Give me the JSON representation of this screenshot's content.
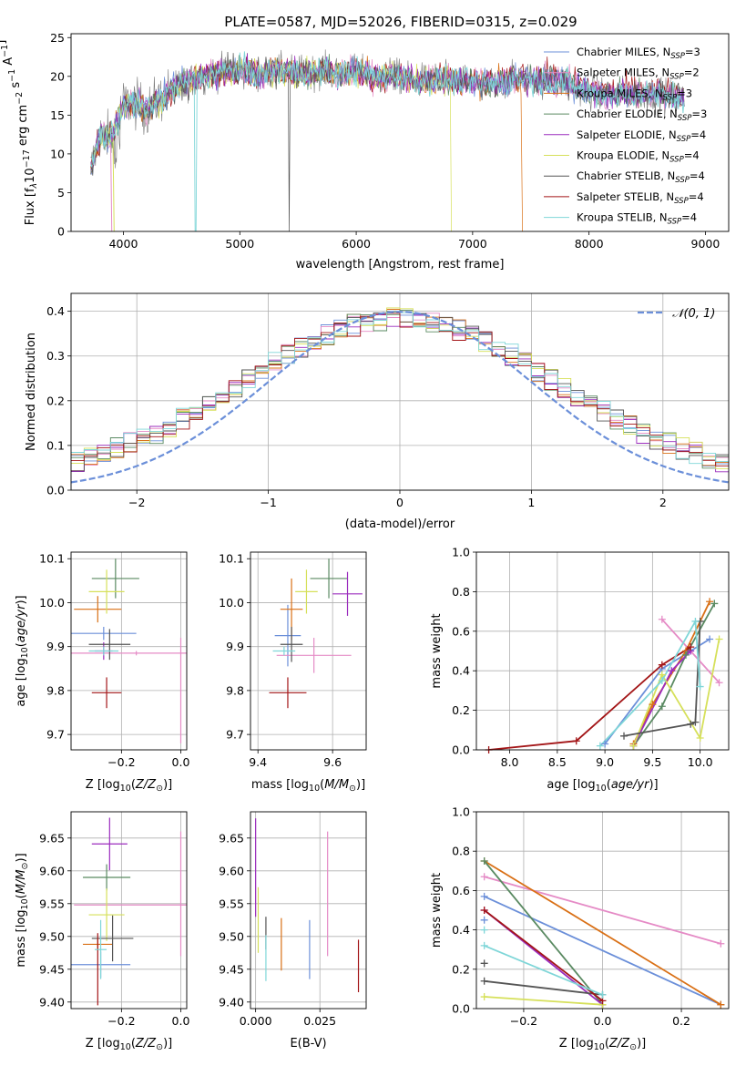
{
  "title": "PLATE=0587, MJD=52026, FIBERID=0315, z=0.029",
  "colors": {
    "chabrier_miles": "#6b8fd9",
    "salpeter_miles": "#e58bc6",
    "kroupa_miles": "#d97016",
    "chabrier_elodie": "#5a8a62",
    "salpeter_elodie": "#9b2cbe",
    "kroupa_elodie": "#d6e05a",
    "chabrier_stelib": "#555555",
    "salpeter_stelib": "#a31517",
    "kroupa_stelib": "#7fd6d8"
  },
  "chart_data": [
    {
      "id": "spectrum",
      "type": "line",
      "xlabel": "wavelength [Angstrom, rest frame]",
      "ylabel_parts": [
        "Flux [f",
        "λ",
        "10",
        "−17",
        " erg cm",
        "−2",
        " s",
        "−1",
        " A",
        "−1",
        "]"
      ],
      "xlim": [
        3550,
        9200
      ],
      "ylim": [
        0,
        25.5
      ],
      "xticks": [
        4000,
        5000,
        6000,
        7000,
        8000,
        9000
      ],
      "yticks": [
        0,
        5,
        10,
        15,
        20,
        25
      ],
      "grid": false,
      "legend_position": "top-right",
      "legend": [
        {
          "label": "Chabrier MILES, N",
          "sub": "SSP",
          "tail": "=3",
          "color_key": "chabrier_miles"
        },
        {
          "label": "Salpeter MILES, N",
          "sub": "SSP",
          "tail": "=2",
          "color_key": "salpeter_miles"
        },
        {
          "label": "Kroupa MILES, N",
          "sub": "SSP",
          "tail": "=3",
          "color_key": "kroupa_miles"
        },
        {
          "label": "Chabrier ELODIE, N",
          "sub": "SSP",
          "tail": "=3",
          "color_key": "chabrier_elodie"
        },
        {
          "label": "Salpeter ELODIE, N",
          "sub": "SSP",
          "tail": "=4",
          "color_key": "salpeter_elodie"
        },
        {
          "label": "Kroupa ELODIE, N",
          "sub": "SSP",
          "tail": "=4",
          "color_key": "kroupa_elodie"
        },
        {
          "label": "Chabrier STELIB, N",
          "sub": "SSP",
          "tail": "=4",
          "color_key": "chabrier_stelib"
        },
        {
          "label": "Salpeter STELIB, N",
          "sub": "SSP",
          "tail": "=4",
          "color_key": "salpeter_stelib"
        },
        {
          "label": "Kroupa STELIB, N",
          "sub": "SSP",
          "tail": "=4",
          "color_key": "kroupa_stelib"
        }
      ],
      "continuum": [
        [
          3720,
          8
        ],
        [
          3800,
          12.5
        ],
        [
          3900,
          12
        ],
        [
          4000,
          16.5
        ],
        [
          4100,
          16.5
        ],
        [
          4200,
          15.5
        ],
        [
          4300,
          17
        ],
        [
          4400,
          18
        ],
        [
          4500,
          19
        ],
        [
          4600,
          19.5
        ],
        [
          4700,
          20
        ],
        [
          4800,
          20.5
        ],
        [
          4900,
          20.7
        ],
        [
          5000,
          21
        ],
        [
          5100,
          20.5
        ],
        [
          5200,
          20.2
        ],
        [
          5300,
          20.7
        ],
        [
          5400,
          20.7
        ],
        [
          5500,
          20.5
        ],
        [
          5600,
          20.5
        ],
        [
          5700,
          20.8
        ],
        [
          5800,
          20.3
        ],
        [
          5900,
          20.6
        ],
        [
          6000,
          20.6
        ],
        [
          6100,
          20.3
        ],
        [
          6200,
          19.8
        ],
        [
          6300,
          20.3
        ],
        [
          6400,
          19.8
        ],
        [
          6500,
          19.5
        ],
        [
          6600,
          19.5
        ],
        [
          6700,
          19.6
        ],
        [
          6800,
          19.5
        ],
        [
          7000,
          19.2
        ],
        [
          7200,
          19.0
        ],
        [
          7400,
          19.7
        ],
        [
          7600,
          19.5
        ],
        [
          7800,
          19.1
        ],
        [
          8000,
          18.0
        ],
        [
          8200,
          17.6
        ],
        [
          8500,
          17.8
        ],
        [
          8800,
          17.2
        ]
      ],
      "drops": [
        {
          "key": "salpeter_miles",
          "end": 3900
        },
        {
          "key": "kroupa_elodie",
          "end": 3920
        },
        {
          "key": "kroupa_stelib",
          "at": 4620
        },
        {
          "key": "chabrier_stelib",
          "at": 5425
        },
        {
          "key": "kroupa_elodie",
          "end": 6810
        },
        {
          "key": "kroupa_miles",
          "end": 7420
        }
      ]
    },
    {
      "id": "residuals",
      "type": "histogram",
      "xlabel": "(data-model)/error",
      "ylabel": "Normed distribution",
      "xlim": [
        -2.5,
        2.5
      ],
      "ylim": [
        0,
        0.44
      ],
      "xticks": [
        -2,
        -1,
        0,
        1,
        2
      ],
      "yticks": [
        0.0,
        0.1,
        0.2,
        0.3,
        0.4
      ],
      "grid": true,
      "legend_position": "top-right",
      "legend_label": "𝒩(0, 1)",
      "bin_width": 0.1,
      "normal_curve_color": "#6b8fd9"
    },
    {
      "id": "age_vs_Z",
      "type": "scatter",
      "xlabel": "Z [log10(Z/Z⊙)]",
      "ylabel": "age  [log10(age/yr)]",
      "xlim": [
        -0.37,
        0.02
      ],
      "ylim": [
        9.665,
        10.115
      ],
      "xticks": [
        -0.2,
        0.0
      ],
      "yticks": [
        9.7,
        9.8,
        9.9,
        10.0,
        10.1
      ],
      "grid": true,
      "points": [
        {
          "key": "chabrier_miles",
          "x": -0.26,
          "xerr": 0.11,
          "y": 9.93,
          "yerr": 0.015
        },
        {
          "key": "salpeter_miles",
          "x": -0.15,
          "xerr": 0.22,
          "y": 9.885,
          "yerr": 0.005
        },
        {
          "key": "kroupa_miles",
          "x": -0.28,
          "xerr": 0.08,
          "y": 9.985,
          "yerr": 0.03
        },
        {
          "key": "chabrier_elodie",
          "x": -0.22,
          "xerr": 0.08,
          "y": 10.055,
          "yerr": 0.045
        },
        {
          "key": "salpeter_elodie",
          "x": -0.26,
          "xerr": 0.03,
          "y": 9.89,
          "yerr": 0.02
        },
        {
          "key": "kroupa_elodie",
          "x": -0.25,
          "xerr": 0.06,
          "y": 10.025,
          "yerr": 0.05
        },
        {
          "key": "chabrier_stelib",
          "x": -0.24,
          "xerr": 0.07,
          "y": 9.905,
          "yerr": 0.035
        },
        {
          "key": "salpeter_stelib",
          "x": -0.25,
          "xerr": 0.05,
          "y": 9.795,
          "yerr": 0.035
        },
        {
          "key": "kroupa_stelib",
          "x": -0.26,
          "xerr": 0.05,
          "y": 9.89,
          "yerr": 0.01
        },
        {
          "key": "salpeter_miles",
          "x": 0.0,
          "xerr": 0.0,
          "y": 9.8,
          "yerr": 0.12
        }
      ]
    },
    {
      "id": "age_vs_mass",
      "type": "scatter",
      "xlabel": "mass [log10(M/M⊙)]",
      "ylabel": "",
      "xlim": [
        9.38,
        9.69
      ],
      "ylim": [
        9.665,
        10.115
      ],
      "xticks": [
        9.4,
        9.6
      ],
      "yticks": [
        9.7,
        9.8,
        9.9,
        10.0,
        10.1
      ],
      "grid": true,
      "points": [
        {
          "key": "chabrier_miles",
          "x": 9.48,
          "xerr": 0.035,
          "y": 9.925,
          "yerr": 0.07
        },
        {
          "key": "salpeter_miles",
          "x": 9.55,
          "xerr": 0.1,
          "y": 9.88,
          "yerr": 0.04
        },
        {
          "key": "kroupa_miles",
          "x": 9.49,
          "xerr": 0.03,
          "y": 9.985,
          "yerr": 0.07
        },
        {
          "key": "chabrier_elodie",
          "x": 9.59,
          "xerr": 0.05,
          "y": 10.055,
          "yerr": 0.045
        },
        {
          "key": "salpeter_elodie",
          "x": 9.64,
          "xerr": 0.04,
          "y": 10.02,
          "yerr": 0.05
        },
        {
          "key": "kroupa_elodie",
          "x": 9.53,
          "xerr": 0.03,
          "y": 10.025,
          "yerr": 0.05
        },
        {
          "key": "chabrier_stelib",
          "x": 9.49,
          "xerr": 0.03,
          "y": 9.905,
          "yerr": 0.04
        },
        {
          "key": "salpeter_stelib",
          "x": 9.48,
          "xerr": 0.05,
          "y": 9.795,
          "yerr": 0.035
        },
        {
          "key": "kroupa_stelib",
          "x": 9.47,
          "xerr": 0.03,
          "y": 9.89,
          "yerr": 0.01
        }
      ]
    },
    {
      "id": "massweight_vs_age",
      "type": "line",
      "xlabel": "age  [log10(age/yr)]",
      "ylabel": "mass weight",
      "xlim": [
        7.65,
        10.3
      ],
      "ylim": [
        0,
        1.0
      ],
      "xticks": [
        8.0,
        8.5,
        9.0,
        9.5,
        10.0
      ],
      "yticks": [
        0.0,
        0.2,
        0.4,
        0.6,
        0.8,
        1.0
      ],
      "grid": true,
      "series": [
        {
          "key": "chabrier_miles",
          "x": [
            9.0,
            9.6,
            10.1
          ],
          "y": [
            0.03,
            0.41,
            0.56
          ]
        },
        {
          "key": "salpeter_miles",
          "x": [
            9.6,
            10.2
          ],
          "y": [
            0.66,
            0.34
          ]
        },
        {
          "key": "kroupa_miles",
          "x": [
            9.3,
            9.5,
            9.85,
            10.1
          ],
          "y": [
            0.03,
            0.23,
            0.5,
            0.75
          ]
        },
        {
          "key": "chabrier_elodie",
          "x": [
            9.3,
            9.6,
            9.85,
            10.15
          ],
          "y": [
            0.02,
            0.22,
            0.48,
            0.74
          ]
        },
        {
          "key": "salpeter_elodie",
          "x": [
            9.3,
            9.7,
            9.9
          ],
          "y": [
            0.02,
            0.4,
            0.5
          ]
        },
        {
          "key": "kroupa_elodie",
          "x": [
            9.3,
            9.6,
            10.0,
            10.2
          ],
          "y": [
            0.02,
            0.38,
            0.06,
            0.56
          ]
        },
        {
          "key": "chabrier_stelib",
          "x": [
            9.2,
            9.9,
            9.95,
            10.0
          ],
          "y": [
            0.07,
            0.13,
            0.14,
            0.65
          ]
        },
        {
          "key": "salpeter_stelib",
          "x": [
            7.78,
            8.7,
            9.6,
            9.9
          ],
          "y": [
            0.0,
            0.045,
            0.43,
            0.52
          ]
        },
        {
          "key": "kroupa_stelib",
          "x": [
            8.95,
            9.6,
            9.95,
            10.0
          ],
          "y": [
            0.02,
            0.35,
            0.65,
            0.32
          ]
        }
      ]
    },
    {
      "id": "mass_vs_Z",
      "type": "scatter",
      "xlabel": "Z [log10(Z/Z⊙)]",
      "ylabel": "mass [log10(M/M⊙)]",
      "xlim": [
        -0.37,
        0.02
      ],
      "ylim": [
        9.39,
        9.69
      ],
      "xticks": [
        -0.2,
        0.0
      ],
      "yticks": [
        9.4,
        9.45,
        9.5,
        9.55,
        9.6,
        9.65
      ],
      "grid": true,
      "points": [
        {
          "key": "chabrier_miles",
          "x": -0.27,
          "xerr": 0.1,
          "y": 9.457,
          "yerr": 0.02
        },
        {
          "key": "salpeter_miles",
          "x": -0.15,
          "xerr": 0.21,
          "y": 9.548,
          "yerr": 0.0
        },
        {
          "key": "salpeter_miles",
          "x": 0.0,
          "xerr": 0.0,
          "y": 9.565,
          "yerr": 0.095
        },
        {
          "key": "kroupa_miles",
          "x": -0.28,
          "xerr": 0.05,
          "y": 9.488,
          "yerr": 0.01
        },
        {
          "key": "chabrier_elodie",
          "x": -0.25,
          "xerr": 0.08,
          "y": 9.59,
          "yerr": 0.02
        },
        {
          "key": "salpeter_elodie",
          "x": -0.24,
          "xerr": 0.06,
          "y": 9.641,
          "yerr": 0.04
        },
        {
          "key": "kroupa_elodie",
          "x": -0.25,
          "xerr": 0.06,
          "y": 9.533,
          "yerr": 0.04
        },
        {
          "key": "chabrier_stelib",
          "x": -0.23,
          "xerr": 0.07,
          "y": 9.497,
          "yerr": 0.035
        },
        {
          "key": "salpeter_stelib",
          "x": -0.28,
          "xerr": 0.0,
          "y": 9.45,
          "yerr": 0.055
        },
        {
          "key": "kroupa_stelib",
          "x": -0.27,
          "xerr": 0.02,
          "y": 9.48,
          "yerr": 0.045
        }
      ]
    },
    {
      "id": "mass_vs_ebv",
      "type": "scatter",
      "xlabel": "E(B-V)",
      "ylabel": "",
      "xlim": [
        -0.002,
        0.043
      ],
      "ylim": [
        9.39,
        9.69
      ],
      "xticks": [
        0.0,
        0.025
      ],
      "yticks": [
        9.4,
        9.45,
        9.5,
        9.55,
        9.6,
        9.65
      ],
      "grid": true,
      "points": [
        {
          "key": "chabrier_miles",
          "x": 0.021,
          "y": 9.48,
          "yerr": 0.045
        },
        {
          "key": "salpeter_miles",
          "x": 0.028,
          "y": 9.565,
          "yerr": 0.095
        },
        {
          "key": "kroupa_miles",
          "x": 0.01,
          "y": 9.488,
          "yerr": 0.04
        },
        {
          "key": "salpeter_elodie",
          "x": 0.0,
          "y": 9.605,
          "yerr": 0.075
        },
        {
          "key": "kroupa_elodie",
          "x": 0.001,
          "y": 9.525,
          "yerr": 0.05
        },
        {
          "key": "chabrier_stelib",
          "x": 0.004,
          "y": 9.505,
          "yerr": 0.025
        },
        {
          "key": "salpeter_stelib",
          "x": 0.04,
          "y": 9.455,
          "yerr": 0.04
        },
        {
          "key": "kroupa_stelib",
          "x": 0.004,
          "y": 9.467,
          "yerr": 0.035
        }
      ]
    },
    {
      "id": "massweight_vs_Z",
      "type": "line",
      "xlabel": "Z [log10(Z/Z⊙)]",
      "ylabel": "mass weight",
      "xlim": [
        -0.32,
        0.32
      ],
      "ylim": [
        0,
        1.0
      ],
      "xticks": [
        -0.2,
        0.0,
        0.2
      ],
      "yticks": [
        0.0,
        0.2,
        0.4,
        0.6,
        0.8,
        1.0
      ],
      "grid": true,
      "series": [
        {
          "key": "chabrier_miles",
          "x": [
            -0.3,
            0.3
          ],
          "y": [
            0.57,
            0.02
          ]
        },
        {
          "key": "salpeter_miles",
          "x": [
            -0.3,
            0.3
          ],
          "y": [
            0.67,
            0.33
          ]
        },
        {
          "key": "kroupa_miles",
          "x": [
            -0.3,
            0.3
          ],
          "y": [
            0.75,
            0.02
          ]
        },
        {
          "key": "chabrier_elodie",
          "x": [
            -0.3,
            0.0
          ],
          "y": [
            0.75,
            0.02
          ]
        },
        {
          "key": "salpeter_elodie",
          "x": [
            -0.3,
            0.0
          ],
          "y": [
            0.5,
            0.02
          ]
        },
        {
          "key": "kroupa_elodie",
          "x": [
            -0.3,
            0.0
          ],
          "y": [
            0.06,
            0.02
          ]
        },
        {
          "key": "chabrier_stelib",
          "x": [
            -0.3,
            0.0
          ],
          "y": [
            0.14,
            0.07
          ]
        },
        {
          "key": "salpeter_stelib",
          "x": [
            -0.3,
            0.0
          ],
          "y": [
            0.5,
            0.04
          ]
        },
        {
          "key": "kroupa_stelib",
          "x": [
            -0.3,
            0.0
          ],
          "y": [
            0.32,
            0.07
          ]
        }
      ],
      "extra_markers": [
        {
          "x": -0.3,
          "y": 0.23,
          "key": "chabrier_stelib"
        },
        {
          "x": -0.3,
          "y": 0.45,
          "key": "chabrier_miles"
        },
        {
          "x": -0.3,
          "y": 0.4,
          "key": "kroupa_stelib"
        }
      ]
    }
  ]
}
